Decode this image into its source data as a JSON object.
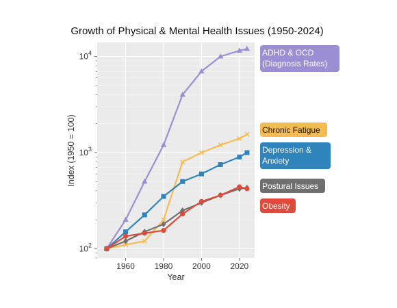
{
  "chart_data": {
    "type": "line",
    "title": "Growth of Physical & Mental Health Issues (1950-2024)",
    "xlabel": "Year",
    "ylabel": "Index (1950 = 100)",
    "yscale": "log",
    "xlim": [
      1945,
      2028
    ],
    "ylim": [
      80,
      14000
    ],
    "xticks": [
      1960,
      1980,
      2000,
      2020
    ],
    "yticks": [
      {
        "value": 100,
        "base": "10",
        "exp": "2"
      },
      {
        "value": 1000,
        "base": "10",
        "exp": "3"
      },
      {
        "value": 10000,
        "base": "10",
        "exp": "4"
      }
    ],
    "grid": true,
    "legend": "right, inline labels",
    "series": [
      {
        "name": "ADHD & OCD (Diagnosis Rates)",
        "label_lines": [
          "ADHD & OCD",
          "(Diagnosis Rates)"
        ],
        "color": "#9b8ed4",
        "text_color": "#ffffff",
        "marker": "triangle",
        "x": [
          1950,
          1960,
          1970,
          1980,
          1990,
          2000,
          2010,
          2020,
          2024
        ],
        "y": [
          100,
          200,
          500,
          1200,
          4000,
          7000,
          10000,
          11500,
          12000
        ]
      },
      {
        "name": "Chronic Fatigue",
        "label_lines": [
          "Chronic Fatigue"
        ],
        "color": "#f6bc52",
        "text_color": "#111111",
        "marker": "x",
        "x": [
          1950,
          1960,
          1970,
          1980,
          1990,
          2000,
          2010,
          2020,
          2024
        ],
        "y": [
          100,
          110,
          120,
          200,
          800,
          1000,
          1200,
          1400,
          1550
        ]
      },
      {
        "name": "Depression & Anxiety",
        "label_lines": [
          "Depression &",
          "Anxiety"
        ],
        "color": "#2f84bc",
        "text_color": "#ffffff",
        "marker": "square",
        "x": [
          1950,
          1960,
          1970,
          1980,
          1990,
          2000,
          2010,
          2020,
          2024
        ],
        "y": [
          100,
          150,
          225,
          350,
          500,
          600,
          750,
          900,
          1000
        ]
      },
      {
        "name": "Postural Issues",
        "label_lines": [
          "Postural Issues"
        ],
        "color": "#6f6f6f",
        "text_color": "#ffffff",
        "marker": "diamond",
        "x": [
          1950,
          1960,
          1970,
          1980,
          1990,
          2000,
          2010,
          2020,
          2024
        ],
        "y": [
          100,
          120,
          150,
          180,
          250,
          300,
          360,
          420,
          430
        ]
      },
      {
        "name": "Obesity",
        "label_lines": [
          "Obesity"
        ],
        "color": "#de4b39",
        "text_color": "#ffffff",
        "marker": "circle",
        "x": [
          1950,
          1960,
          1970,
          1980,
          1990,
          2000,
          2010,
          2020,
          2024
        ],
        "y": [
          100,
          135,
          145,
          155,
          230,
          310,
          360,
          440,
          420
        ]
      }
    ]
  }
}
